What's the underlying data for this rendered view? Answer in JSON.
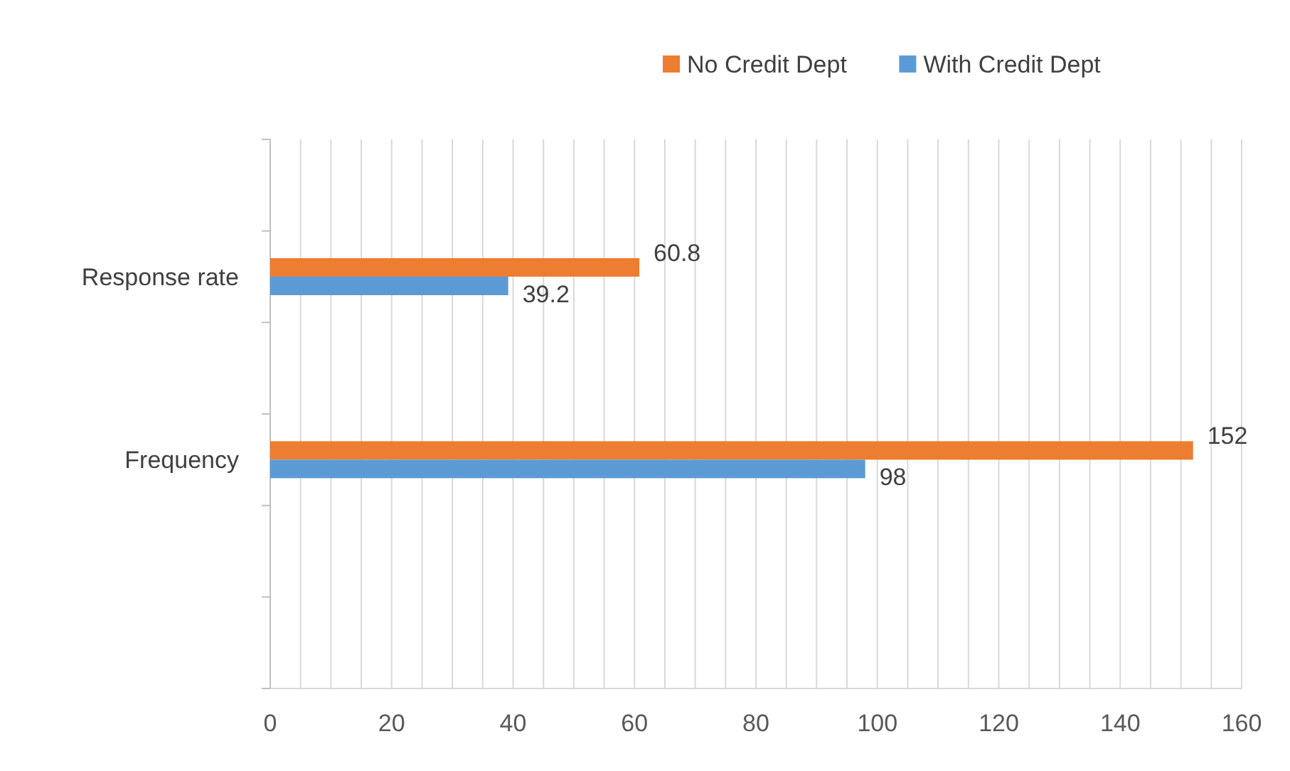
{
  "chart_data": {
    "type": "bar",
    "orientation": "horizontal",
    "categories": [
      null,
      "Response rate",
      null,
      "Frequency",
      null,
      null
    ],
    "series": [
      {
        "name": "No Credit Dept",
        "color": "#ed7d31",
        "values": [
          null,
          60.8,
          null,
          152,
          null,
          null
        ]
      },
      {
        "name": "With Credit Dept",
        "color": "#5b9bd5",
        "values": [
          null,
          39.2,
          null,
          98,
          null,
          null
        ]
      }
    ],
    "xlim": [
      0,
      160
    ],
    "xticks": [
      0,
      {
        "value": 5,
        "label": null
      },
      {
        "value": 10,
        "label": null
      },
      {
        "value": 15,
        "label": null
      },
      20,
      {
        "value": 25,
        "label": null
      },
      {
        "value": 30,
        "label": null
      },
      {
        "value": 35,
        "label": null
      },
      40,
      {
        "value": 45,
        "label": null
      },
      {
        "value": 50,
        "label": null
      },
      {
        "value": 55,
        "label": null
      },
      60,
      {
        "value": 65,
        "label": null
      },
      {
        "value": 70,
        "label": null
      },
      {
        "value": 75,
        "label": null
      },
      80,
      {
        "value": 85,
        "label": null
      },
      {
        "value": 90,
        "label": null
      },
      {
        "value": 95,
        "label": null
      },
      100,
      {
        "value": 105,
        "label": null
      },
      {
        "value": 110,
        "label": null
      },
      {
        "value": 115,
        "label": null
      },
      120,
      {
        "value": 125,
        "label": null
      },
      {
        "value": 130,
        "label": null
      },
      {
        "value": 135,
        "label": null
      },
      140,
      {
        "value": 145,
        "label": null
      },
      {
        "value": 150,
        "label": null
      },
      {
        "value": 155,
        "label": null
      },
      160
    ],
    "grid": "x",
    "legend": "top",
    "data_labels": true
  }
}
